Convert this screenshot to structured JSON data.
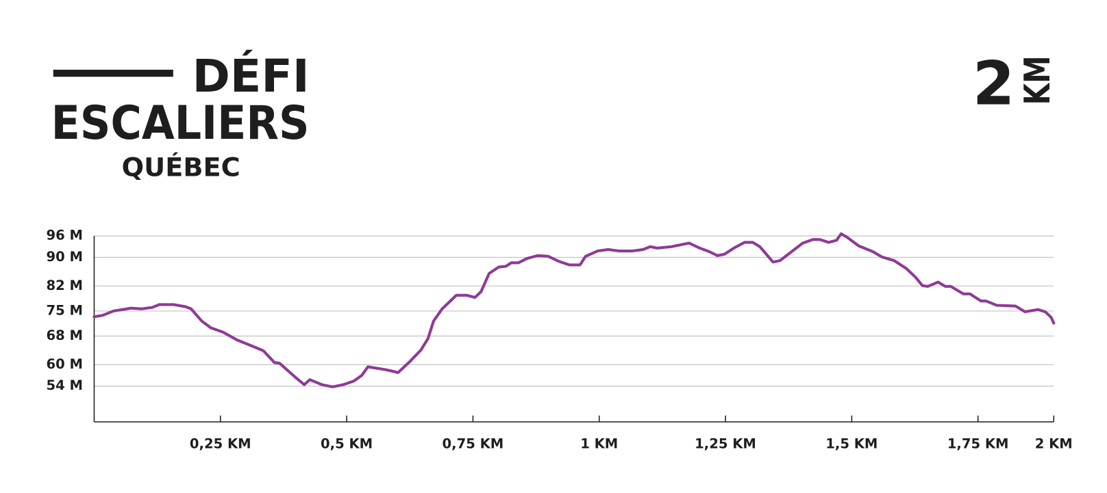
{
  "header": {
    "line1": "DÉFI",
    "line2": "ESCALIERS",
    "line3": "QUÉBEC",
    "distance": "2",
    "unit": "KM"
  },
  "chart_data": {
    "type": "line",
    "color": "#8e3a96",
    "grid": true,
    "x": [
      0,
      0.017,
      0.038,
      0.073,
      0.094,
      0.115,
      0.129,
      0.157,
      0.181,
      0.192,
      0.213,
      0.231,
      0.255,
      0.283,
      0.311,
      0.335,
      0.357,
      0.367,
      0.399,
      0.416,
      0.427,
      0.451,
      0.472,
      0.493,
      0.514,
      0.53,
      0.542,
      0.577,
      0.602,
      0.626,
      0.647,
      0.661,
      0.672,
      0.689,
      0.717,
      0.738,
      0.754,
      0.766,
      0.782,
      0.801,
      0.815,
      0.826,
      0.84,
      0.857,
      0.878,
      0.899,
      0.92,
      0.941,
      0.962,
      0.973,
      0.997,
      1.018,
      1.039,
      1.066,
      1.087,
      1.101,
      1.115,
      1.143,
      1.178,
      1.199,
      1.218,
      1.234,
      1.248,
      1.269,
      1.288,
      1.304,
      1.318,
      1.332,
      1.344,
      1.358,
      1.379,
      1.403,
      1.423,
      1.437,
      1.454,
      1.47,
      1.479,
      1.491,
      1.514,
      1.542,
      1.56,
      1.584,
      1.608,
      1.626,
      1.64,
      1.651,
      1.671,
      1.685,
      1.696,
      1.721,
      1.734,
      1.756,
      1.766,
      1.787,
      1.824,
      1.843,
      1.869,
      1.883,
      1.895,
      1.9
    ],
    "values": [
      73.4,
      73.8,
      75.0,
      75.8,
      75.6,
      76.0,
      76.8,
      76.8,
      76.2,
      75.6,
      72.2,
      70.3,
      69.1,
      66.9,
      65.3,
      63.9,
      60.6,
      60.4,
      56.4,
      54.4,
      55.8,
      54.4,
      53.8,
      54.4,
      55.4,
      57.0,
      59.4,
      58.6,
      57.8,
      61.0,
      64.1,
      67.3,
      72.2,
      75.6,
      79.4,
      79.4,
      78.8,
      80.4,
      85.5,
      87.3,
      87.5,
      88.5,
      88.5,
      89.7,
      90.5,
      90.3,
      88.9,
      87.9,
      87.9,
      90.3,
      91.8,
      92.2,
      91.8,
      91.8,
      92.2,
      93.0,
      92.6,
      93.0,
      94.0,
      92.6,
      91.6,
      90.5,
      90.9,
      92.8,
      94.2,
      94.2,
      93.0,
      90.7,
      88.7,
      89.1,
      91.4,
      94.0,
      95.0,
      95.0,
      94.2,
      94.8,
      96.6,
      95.6,
      93.2,
      91.6,
      90.1,
      89.1,
      86.9,
      84.5,
      82.1,
      81.9,
      83.1,
      81.9,
      81.9,
      79.8,
      79.8,
      77.8,
      77.8,
      76.6,
      76.4,
      74.8,
      75.4,
      74.8,
      73.2,
      71.6
    ],
    "xlim": [
      0,
      1.9
    ],
    "ylim": [
      44,
      96
    ],
    "xticks": [
      {
        "value": 0.25,
        "label": "0,25 KM"
      },
      {
        "value": 0.5,
        "label": "0,5 KM"
      },
      {
        "value": 0.75,
        "label": "0,75 KM"
      },
      {
        "value": 1,
        "label": "1 KM"
      },
      {
        "value": 1.25,
        "label": "1,25 KM"
      },
      {
        "value": 1.5,
        "label": "1,5 KM"
      },
      {
        "value": 1.75,
        "label": "1,75 KM"
      },
      {
        "value": 1.9,
        "label": "2 KM"
      }
    ],
    "yticks": [
      {
        "value": 54,
        "label": "54 M"
      },
      {
        "value": 60,
        "label": "60 M"
      },
      {
        "value": 68,
        "label": "68 M"
      },
      {
        "value": 75,
        "label": "75 M"
      },
      {
        "value": 82,
        "label": "82 M"
      },
      {
        "value": 90,
        "label": "90 M"
      },
      {
        "value": 96,
        "label": "96 M"
      }
    ]
  }
}
